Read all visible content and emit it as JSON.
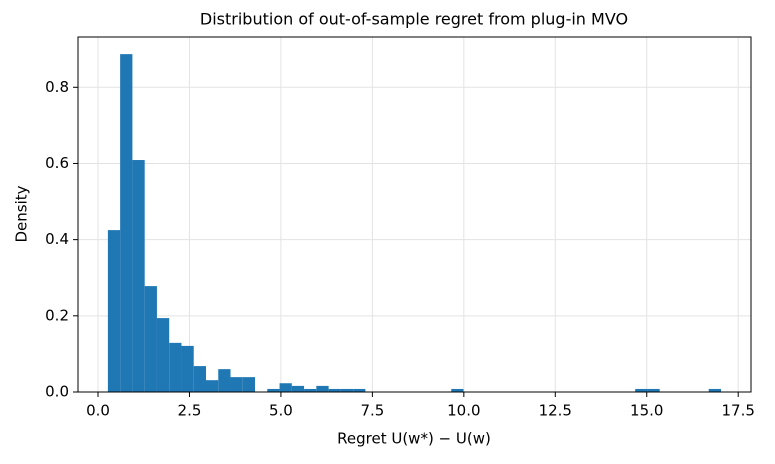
{
  "chart_data": {
    "type": "histogram",
    "title": "Distribution of out-of-sample regret from plug-in MVO",
    "x_label": "Regret  U(w*) − U(w)",
    "y_label": "Density",
    "color": "#1f77b4",
    "grid": true,
    "bins": [
      0.27,
      0.605,
      0.94,
      1.276,
      1.611,
      1.946,
      2.281,
      2.616,
      2.952,
      3.287,
      3.622,
      3.957,
      4.292,
      4.628,
      4.963,
      5.298,
      5.633,
      5.968,
      6.304,
      6.639,
      6.974,
      7.309,
      7.644,
      7.98,
      8.315,
      8.65,
      8.985,
      9.32,
      9.656,
      9.991,
      10.326,
      10.661,
      10.996,
      11.332,
      11.667,
      12.002,
      12.337,
      12.672,
      13.008,
      13.343,
      13.678,
      14.013,
      14.348,
      14.684,
      15.019,
      15.354,
      15.689,
      16.024,
      16.36,
      16.695,
      17.03
    ],
    "values": [
      0.425,
      0.887,
      0.609,
      0.278,
      0.194,
      0.129,
      0.121,
      0.068,
      0.031,
      0.06,
      0.039,
      0.039,
      0,
      0.008,
      0.023,
      0.016,
      0.008,
      0.016,
      0.008,
      0.008,
      0.008,
      0,
      0,
      0,
      0,
      0,
      0,
      0,
      0.008,
      0,
      0,
      0,
      0,
      0,
      0,
      0,
      0,
      0,
      0,
      0,
      0,
      0,
      0,
      0.008,
      0.008,
      0,
      0,
      0,
      0,
      0.008
    ],
    "xlim": [
      -0.547,
      17.85
    ],
    "ylim": [
      0,
      0.932
    ],
    "xticks": [
      {
        "value": 0,
        "label": "0.0"
      },
      2.5,
      {
        "value": 5,
        "label": "5.0"
      },
      7.5,
      {
        "value": 10,
        "label": "10.0"
      },
      12.5,
      {
        "value": 15,
        "label": "15.0"
      },
      17.5
    ],
    "yticks": [
      {
        "value": 0,
        "label": "0.0"
      },
      0.2,
      0.4,
      0.6,
      0.8
    ]
  }
}
